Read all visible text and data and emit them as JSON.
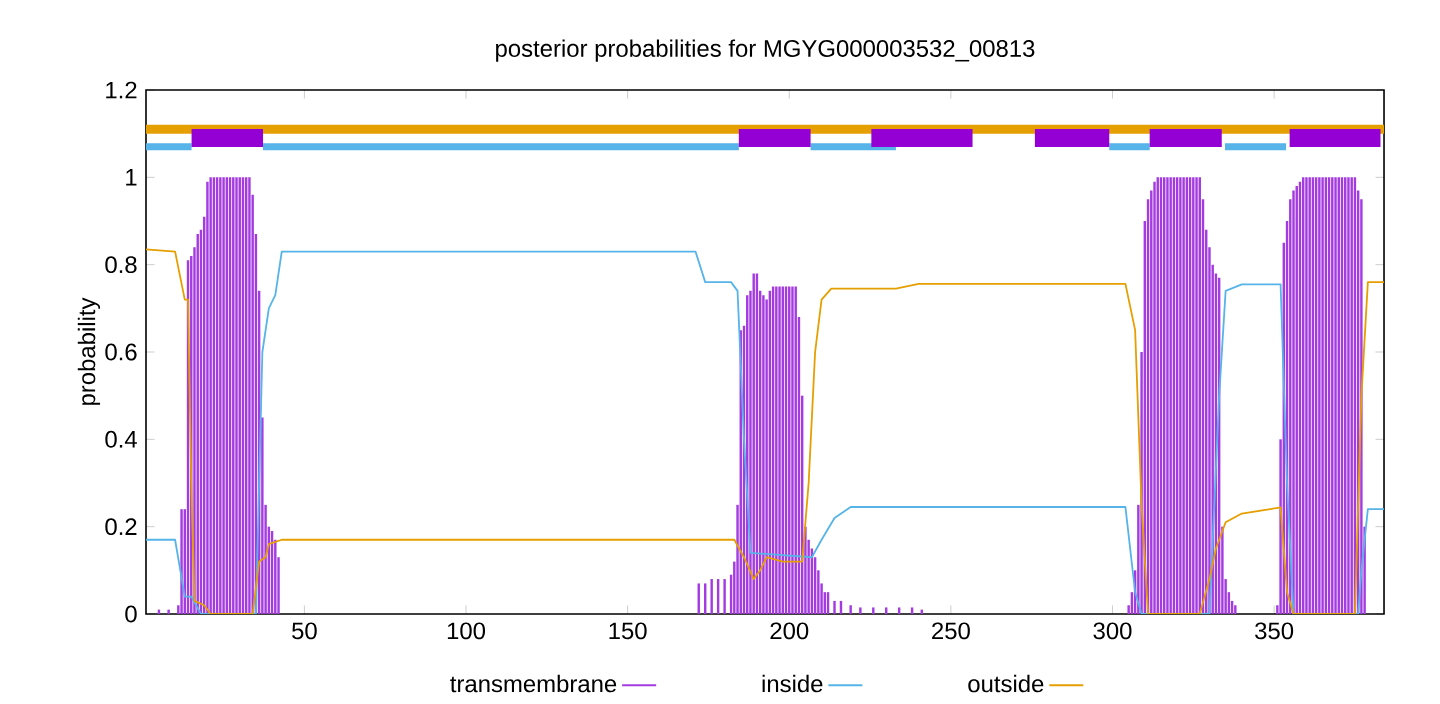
{
  "chart_data": {
    "type": "line",
    "title": "posterior probabilities for MGYG000003532_00813",
    "ylabel": "probability",
    "xlim": [
      1,
      384
    ],
    "ylim": [
      0,
      1.2
    ],
    "xticks": [
      50,
      100,
      150,
      200,
      250,
      300,
      350
    ],
    "yticks": [
      0,
      0.2,
      0.4,
      0.6,
      0.8,
      1,
      1.2
    ],
    "legend": "bottom",
    "series": [
      {
        "name": "transmembrane",
        "type": "bar",
        "color": "#a33be0",
        "x": [
          5,
          8,
          11,
          12,
          13,
          14,
          15,
          16,
          17,
          18,
          19,
          20,
          21,
          22,
          23,
          24,
          25,
          26,
          27,
          28,
          29,
          30,
          31,
          32,
          33,
          34,
          35,
          36,
          37,
          38,
          39,
          40,
          41,
          42,
          172,
          174,
          176,
          178,
          180,
          182,
          183,
          184,
          185,
          186,
          187,
          188,
          189,
          190,
          191,
          192,
          193,
          194,
          195,
          196,
          197,
          198,
          199,
          200,
          201,
          202,
          203,
          204,
          205,
          206,
          207,
          208,
          209,
          210,
          211,
          212,
          214,
          216,
          219,
          222,
          226,
          230,
          234,
          238,
          241,
          305,
          306,
          307,
          308,
          309,
          310,
          311,
          312,
          313,
          314,
          315,
          316,
          317,
          318,
          319,
          320,
          321,
          322,
          323,
          324,
          325,
          326,
          327,
          328,
          329,
          330,
          331,
          332,
          333,
          334,
          335,
          336,
          337,
          338,
          351,
          352,
          353,
          354,
          355,
          356,
          357,
          358,
          359,
          360,
          361,
          362,
          363,
          364,
          365,
          366,
          367,
          368,
          369,
          370,
          371,
          372,
          373,
          374,
          375,
          376,
          377,
          378
        ],
        "values": [
          0.01,
          0.01,
          0.02,
          0.24,
          0.24,
          0.81,
          0.82,
          0.84,
          0.87,
          0.88,
          0.91,
          0.99,
          1.0,
          1.0,
          1.0,
          1.0,
          1.0,
          1.0,
          1.0,
          1.0,
          1.0,
          1.0,
          1.0,
          1.0,
          1.0,
          0.96,
          0.87,
          0.74,
          0.45,
          0.25,
          0.2,
          0.19,
          0.17,
          0.13,
          0.07,
          0.07,
          0.08,
          0.08,
          0.08,
          0.09,
          0.12,
          0.25,
          0.65,
          0.66,
          0.73,
          0.74,
          0.78,
          0.78,
          0.74,
          0.73,
          0.72,
          0.74,
          0.75,
          0.75,
          0.75,
          0.75,
          0.75,
          0.75,
          0.75,
          0.75,
          0.68,
          0.5,
          0.2,
          0.17,
          0.15,
          0.13,
          0.1,
          0.07,
          0.05,
          0.05,
          0.03,
          0.03,
          0.02,
          0.015,
          0.015,
          0.015,
          0.015,
          0.015,
          0.01,
          0.02,
          0.05,
          0.1,
          0.25,
          0.6,
          0.9,
          0.95,
          0.97,
          0.99,
          1.0,
          1.0,
          1.0,
          1.0,
          1.0,
          1.0,
          1.0,
          1.0,
          1.0,
          1.0,
          1.0,
          1.0,
          1.0,
          1.0,
          0.95,
          0.88,
          0.84,
          0.8,
          0.78,
          0.77,
          0.2,
          0.08,
          0.05,
          0.03,
          0.02,
          0.02,
          0.4,
          0.85,
          0.9,
          0.95,
          0.97,
          0.98,
          0.99,
          1.0,
          1.0,
          1.0,
          1.0,
          1.0,
          1.0,
          1.0,
          1.0,
          1.0,
          1.0,
          1.0,
          1.0,
          1.0,
          1.0,
          1.0,
          1.0,
          1.0,
          0.97,
          0.95,
          0.2
        ]
      },
      {
        "name": "inside",
        "color": "#56b4e9",
        "x": [
          1,
          10,
          13,
          15,
          18,
          35,
          37,
          39,
          41,
          43,
          171,
          174,
          182,
          184,
          186,
          188,
          207,
          210,
          214,
          219,
          304,
          307,
          309,
          330,
          333,
          335,
          340,
          352,
          354,
          356,
          376,
          377,
          379,
          384
        ],
        "values": [
          0.17,
          0.17,
          0.04,
          0.04,
          0,
          0,
          0.6,
          0.7,
          0.73,
          0.83,
          0.83,
          0.76,
          0.76,
          0.74,
          0.4,
          0.14,
          0.13,
          0.17,
          0.22,
          0.245,
          0.245,
          0.05,
          0,
          0,
          0.5,
          0.74,
          0.755,
          0.755,
          0.3,
          0,
          0,
          0.1,
          0.24,
          0.24
        ]
      },
      {
        "name": "outside",
        "color": "#e69f00",
        "x": [
          1,
          10,
          13,
          14,
          15,
          16,
          19,
          21,
          34,
          36,
          38,
          39,
          43,
          171,
          183,
          186,
          189,
          191,
          193,
          198,
          204,
          206,
          208,
          210,
          213,
          233,
          240,
          304,
          307,
          309,
          311,
          327,
          330,
          332,
          335,
          340,
          352,
          354,
          356,
          375,
          377,
          379,
          384
        ],
        "values": [
          0.835,
          0.83,
          0.72,
          0.72,
          0.3,
          0.03,
          0.02,
          0,
          0,
          0.12,
          0.13,
          0.16,
          0.17,
          0.17,
          0.17,
          0.13,
          0.08,
          0.1,
          0.13,
          0.12,
          0.12,
          0.3,
          0.6,
          0.72,
          0.745,
          0.745,
          0.756,
          0.756,
          0.65,
          0.25,
          0,
          0,
          0.08,
          0.15,
          0.21,
          0.23,
          0.244,
          0.05,
          0,
          0,
          0.5,
          0.76,
          0.76
        ]
      },
      {
        "color": "#e69f00",
        "x": [
          1,
          384
        ],
        "values": [
          1.11,
          1.11
        ]
      },
      {
        "color": "#56b4e9",
        "x": [
          1,
          15.1,
          26,
          37.2,
          184.4,
          195,
          206.6,
          233,
          260,
          299,
          311.5,
          320,
          334.8,
          353.7
        ],
        "values": [
          1.07,
          1.07,
          null,
          1.07,
          1.07,
          null,
          1.07,
          1.07,
          null,
          1.07,
          1.07,
          null,
          1.07,
          1.07
        ]
      },
      {
        "color": "#9400d3",
        "x": [
          15.1,
          37.2,
          100,
          184.4,
          206.6,
          215,
          225.4,
          256.7,
          265,
          276,
          299,
          305,
          311.5,
          333.8,
          345,
          354.8,
          382.9
        ],
        "values": [
          1.09,
          1.09,
          null,
          1.09,
          1.09,
          null,
          1.09,
          1.09,
          null,
          1.09,
          1.09,
          null,
          1.09,
          1.09,
          null,
          1.09,
          1.09
        ]
      }
    ]
  }
}
